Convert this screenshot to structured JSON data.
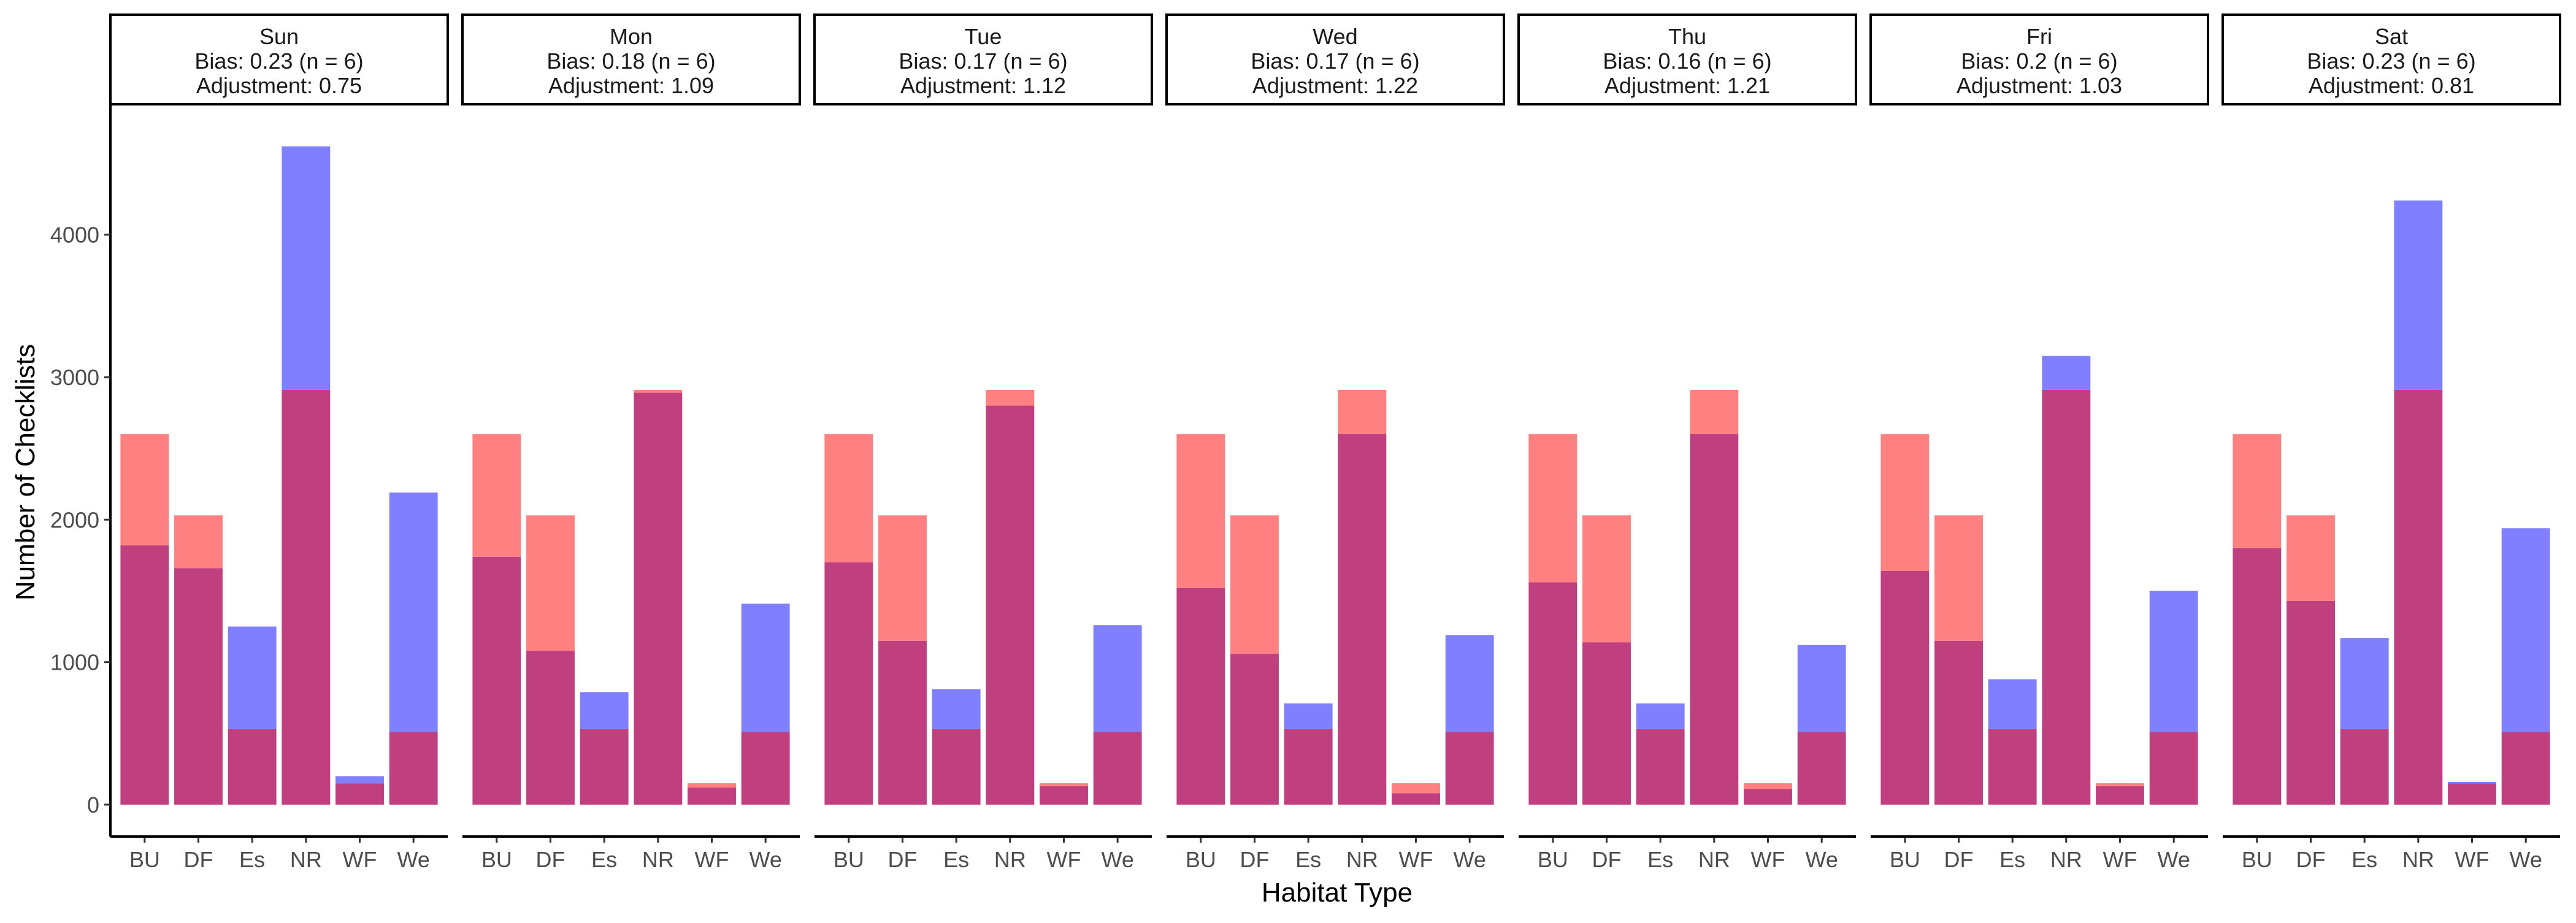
{
  "chart_data": {
    "type": "bar",
    "xlabel": "Habitat Type",
    "ylabel": "Number of Checklists",
    "ylim": [
      0,
      4900
    ],
    "yticks": [
      0,
      1000,
      2000,
      3000,
      4000
    ],
    "categories": [
      "BU",
      "DF",
      "Es",
      "NR",
      "WF",
      "We"
    ],
    "overlay_colors": {
      "red": "#ff8080",
      "blue": "#8080ff",
      "overlap": "#c0407f"
    },
    "panels": [
      {
        "day": "Sun",
        "bias": "Bias: 0.23 (n = 6)",
        "adjustment": "Adjustment: 0.75",
        "series": [
          {
            "color": "red",
            "values": [
              2600,
              2030,
              530,
              2910,
              150,
              510
            ]
          },
          {
            "color": "blue",
            "values": [
              1820,
              1660,
              1250,
              4620,
              200,
              2190
            ]
          }
        ]
      },
      {
        "day": "Mon",
        "bias": "Bias: 0.18 (n = 6)",
        "adjustment": "Adjustment: 1.09",
        "series": [
          {
            "color": "red",
            "values": [
              2600,
              2030,
              530,
              2910,
              150,
              510
            ]
          },
          {
            "color": "blue",
            "values": [
              1740,
              1080,
              790,
              2890,
              120,
              1410
            ]
          }
        ]
      },
      {
        "day": "Tue",
        "bias": "Bias: 0.17 (n = 6)",
        "adjustment": "Adjustment: 1.12",
        "series": [
          {
            "color": "red",
            "values": [
              2600,
              2030,
              530,
              2910,
              150,
              510
            ]
          },
          {
            "color": "blue",
            "values": [
              1700,
              1150,
              810,
              2800,
              130,
              1260
            ]
          }
        ]
      },
      {
        "day": "Wed",
        "bias": "Bias: 0.17 (n = 6)",
        "adjustment": "Adjustment: 1.22",
        "series": [
          {
            "color": "red",
            "values": [
              2600,
              2030,
              530,
              2910,
              150,
              510
            ]
          },
          {
            "color": "blue",
            "values": [
              1520,
              1060,
              710,
              2600,
              80,
              1190
            ]
          }
        ]
      },
      {
        "day": "Thu",
        "bias": "Bias: 0.16 (n = 6)",
        "adjustment": "Adjustment: 1.21",
        "series": [
          {
            "color": "red",
            "values": [
              2600,
              2030,
              530,
              2910,
              150,
              510
            ]
          },
          {
            "color": "blue",
            "values": [
              1560,
              1140,
              710,
              2600,
              110,
              1120
            ]
          }
        ]
      },
      {
        "day": "Fri",
        "bias": "Bias: 0.2 (n = 6)",
        "adjustment": "Adjustment: 1.03",
        "series": [
          {
            "color": "red",
            "values": [
              2600,
              2030,
              530,
              2910,
              150,
              510
            ]
          },
          {
            "color": "blue",
            "values": [
              1640,
              1150,
              880,
              3150,
              130,
              1500
            ]
          }
        ]
      },
      {
        "day": "Sat",
        "bias": "Bias: 0.23 (n = 6)",
        "adjustment": "Adjustment: 0.81",
        "series": [
          {
            "color": "red",
            "values": [
              2600,
              2030,
              530,
              2910,
              150,
              510
            ]
          },
          {
            "color": "blue",
            "values": [
              1800,
              1430,
              1170,
              4240,
              160,
              1940
            ]
          }
        ]
      }
    ]
  }
}
